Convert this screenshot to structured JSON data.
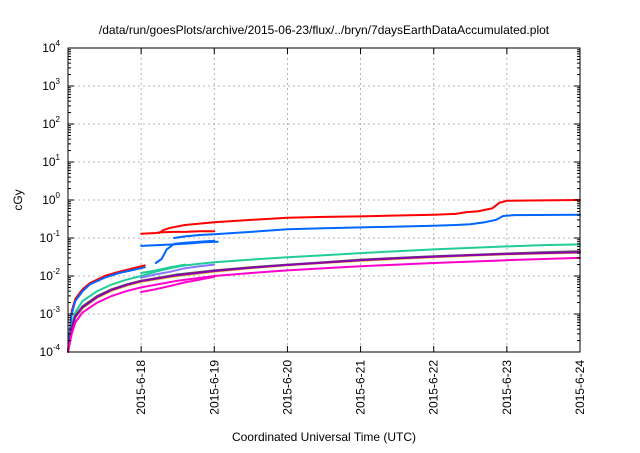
{
  "chart_data": {
    "type": "line",
    "title": "/data/run/goesPlots/archive/2015-06-23/flux/../bryn/7daysEarthDataAccumulated.plot",
    "xlabel": "Coordinated Universal Time (UTC)",
    "ylabel": "cGy",
    "x_tick_labels": [
      "2015-6-18",
      "2015-6-19",
      "2015-6-20",
      "2015-6-21",
      "2015-6-22",
      "2015-6-23",
      "2015-6-24"
    ],
    "x_tick_values": [
      1,
      2,
      3,
      4,
      5,
      6,
      7
    ],
    "xlim": [
      0,
      7
    ],
    "y_scale": "log",
    "y_tick_base": "10",
    "y_tick_exponents": [
      "-4",
      "-3",
      "-2",
      "-1",
      "0",
      "1",
      "2",
      "3",
      "4"
    ],
    "ylim": [
      0.0001,
      10000
    ],
    "grid": true,
    "legend": "none",
    "series": [
      {
        "color": "#ff0000",
        "x": [
          0.0,
          0.05,
          0.1,
          0.2,
          0.3,
          0.5,
          0.7,
          1.0,
          1.05
        ],
        "y": [
          0.0001,
          0.0012,
          0.0025,
          0.0045,
          0.0065,
          0.01,
          0.013,
          0.018,
          0.019
        ]
      },
      {
        "color": "#ff0000",
        "x": [
          1.0,
          1.2,
          1.25,
          1.45,
          1.6,
          1.8,
          2.0
        ],
        "y": [
          0.13,
          0.135,
          0.14,
          0.145,
          0.145,
          0.15,
          0.15
        ]
      },
      {
        "color": "#ff0000",
        "x": [
          1.25,
          1.3,
          1.4,
          1.6,
          1.8,
          2.0,
          2.5,
          3.0,
          3.5,
          4.0,
          4.5,
          5.0,
          5.3,
          5.45,
          5.6,
          5.8,
          5.9,
          6.0,
          6.3,
          7.0
        ],
        "y": [
          0.135,
          0.16,
          0.185,
          0.22,
          0.24,
          0.26,
          0.3,
          0.34,
          0.36,
          0.37,
          0.39,
          0.41,
          0.43,
          0.48,
          0.5,
          0.6,
          0.85,
          0.95,
          0.97,
          1.0
        ]
      },
      {
        "color": "#0066ff",
        "x": [
          0.0,
          0.05,
          0.1,
          0.2,
          0.3,
          0.5,
          0.7,
          1.0,
          1.05
        ],
        "y": [
          0.0001,
          0.001,
          0.0022,
          0.004,
          0.006,
          0.009,
          0.012,
          0.016,
          0.017
        ]
      },
      {
        "color": "#0066ff",
        "x": [
          1.0,
          1.15,
          1.3,
          1.45,
          1.55,
          1.7,
          1.85,
          2.05
        ],
        "y": [
          0.062,
          0.064,
          0.066,
          0.068,
          0.07,
          0.073,
          0.077,
          0.08
        ]
      },
      {
        "color": "#0066ff",
        "x": [
          1.2,
          1.28,
          1.35,
          1.45,
          1.6,
          1.8,
          2.0
        ],
        "y": [
          0.022,
          0.028,
          0.05,
          0.07,
          0.075,
          0.08,
          0.085
        ]
      },
      {
        "color": "#0066ff",
        "x": [
          1.45,
          1.6,
          1.8,
          2.0,
          2.5,
          3.0,
          3.5,
          4.0,
          4.5,
          5.0,
          5.3,
          5.5,
          5.7,
          5.85,
          5.95,
          6.1,
          7.0
        ],
        "y": [
          0.1,
          0.11,
          0.12,
          0.125,
          0.145,
          0.17,
          0.18,
          0.19,
          0.2,
          0.21,
          0.22,
          0.23,
          0.26,
          0.3,
          0.38,
          0.4,
          0.41
        ]
      },
      {
        "color": "#22cc99",
        "x": [
          0.0,
          0.05,
          0.1,
          0.2,
          0.4,
          0.6,
          0.8,
          1.0,
          1.2,
          1.4,
          1.6,
          1.8,
          2.0,
          2.5,
          3.0,
          3.5,
          4.0,
          4.5,
          5.0,
          5.5,
          6.0,
          6.5,
          7.0
        ],
        "y": [
          0.0001,
          0.0005,
          0.0011,
          0.0022,
          0.004,
          0.006,
          0.008,
          0.01,
          0.013,
          0.016,
          0.019,
          0.021,
          0.023,
          0.027,
          0.031,
          0.035,
          0.04,
          0.045,
          0.05,
          0.055,
          0.06,
          0.065,
          0.068
        ]
      },
      {
        "color": "#22cc99",
        "x": [
          1.0,
          1.2,
          1.4,
          1.6
        ],
        "y": [
          0.012,
          0.014,
          0.017,
          0.02
        ]
      },
      {
        "color": "#8877ff",
        "x": [
          1.0,
          1.2,
          1.4,
          1.6,
          1.8,
          2.0
        ],
        "y": [
          0.009,
          0.011,
          0.013,
          0.016,
          0.018,
          0.02
        ]
      },
      {
        "color": "#555555",
        "x": [
          0.0,
          0.05,
          0.1,
          0.2,
          0.4,
          0.6,
          0.8,
          1.0,
          1.5,
          2.0,
          2.5,
          3.0,
          3.5,
          4.0,
          4.5,
          5.0,
          5.5,
          6.0,
          6.5,
          7.0
        ],
        "y": [
          0.0001,
          0.00045,
          0.0009,
          0.0016,
          0.003,
          0.0045,
          0.006,
          0.0075,
          0.011,
          0.014,
          0.017,
          0.02,
          0.023,
          0.027,
          0.03,
          0.033,
          0.036,
          0.039,
          0.042,
          0.045
        ]
      },
      {
        "color": "#e5c430",
        "x": [
          0.0,
          0.05,
          0.1,
          0.2,
          0.4,
          0.6,
          0.8,
          1.0,
          1.5,
          2.0,
          2.5,
          3.0,
          3.5,
          4.0,
          4.5,
          5.0,
          5.5,
          6.0,
          6.5,
          7.0
        ],
        "y": [
          0.0001,
          0.0004,
          0.0008,
          0.0014,
          0.0027,
          0.0041,
          0.0055,
          0.007,
          0.01,
          0.013,
          0.016,
          0.019,
          0.022,
          0.025,
          0.028,
          0.031,
          0.034,
          0.037,
          0.039,
          0.041
        ]
      },
      {
        "color": "#8b00b0",
        "x": [
          0.0,
          0.05,
          0.1,
          0.2,
          0.4,
          0.6,
          0.8,
          1.0,
          1.5,
          2.0,
          2.5,
          3.0,
          3.5,
          4.0,
          4.5,
          5.0,
          5.5,
          6.0,
          6.5,
          7.0
        ],
        "y": [
          0.0001,
          0.00042,
          0.00085,
          0.0015,
          0.0028,
          0.0043,
          0.0058,
          0.0073,
          0.0105,
          0.0135,
          0.0165,
          0.0195,
          0.0225,
          0.026,
          0.029,
          0.032,
          0.035,
          0.038,
          0.04,
          0.042
        ]
      },
      {
        "color": "#ff00cc",
        "x": [
          0.0,
          0.05,
          0.1,
          0.2,
          0.4,
          0.6,
          0.8,
          1.0,
          1.5,
          2.0,
          2.5,
          3.0,
          3.5,
          4.0,
          4.5,
          5.0,
          5.5,
          6.0,
          6.5,
          7.0
        ],
        "y": [
          0.0001,
          0.0003,
          0.0006,
          0.0011,
          0.002,
          0.003,
          0.004,
          0.005,
          0.0075,
          0.01,
          0.012,
          0.014,
          0.016,
          0.018,
          0.02,
          0.022,
          0.024,
          0.026,
          0.028,
          0.03
        ]
      },
      {
        "color": "#ff00cc",
        "x": [
          1.0,
          1.2,
          1.4,
          1.6,
          1.8,
          2.0
        ],
        "y": [
          0.0038,
          0.0045,
          0.0055,
          0.0068,
          0.008,
          0.0095
        ]
      }
    ]
  }
}
